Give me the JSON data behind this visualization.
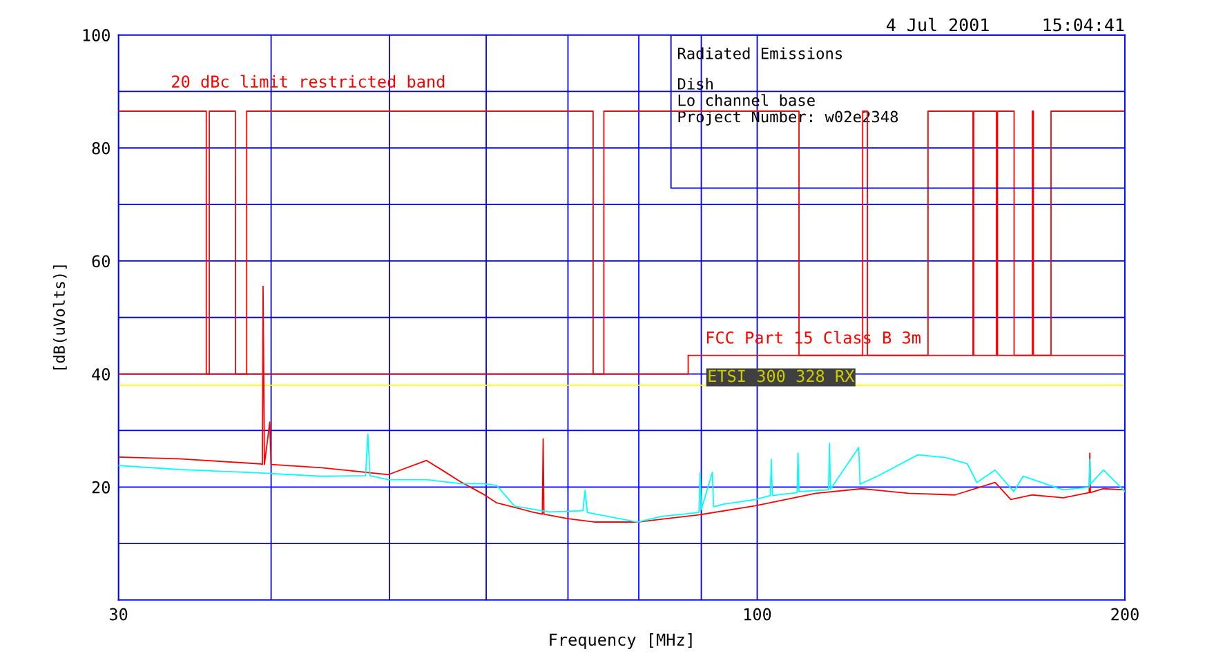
{
  "chart_data": {
    "type": "line",
    "title": "4 Jul 2001     15:04:41",
    "xlabel": "Frequency [MHz]",
    "ylabel": "[dB(uVolts)]",
    "log": "x",
    "xlim": [
      30,
      200
    ],
    "ylim": [
      0,
      100
    ],
    "xticks": [
      30,
      {
        "value": 40,
        "label": null
      },
      {
        "value": 50,
        "label": null
      },
      {
        "value": 60,
        "label": null
      },
      {
        "value": 70,
        "label": null
      },
      {
        "value": 80,
        "label": null
      },
      {
        "value": 90,
        "label": null
      },
      100,
      200
    ],
    "yticks": [
      {
        "value": 10,
        "label": null
      },
      20,
      {
        "value": 30,
        "label": null
      },
      40,
      {
        "value": 50,
        "label": null
      },
      60,
      {
        "value": 70,
        "label": null
      },
      80,
      {
        "value": 90,
        "label": null
      },
      100
    ],
    "grid": true,
    "legend": false,
    "marker": "none",
    "line_style": "solid",
    "series": [
      {
        "name": "FCC Part 15 Class B 3m",
        "color": "#ff0000",
        "x": [
          30,
          87.8,
          87.8,
          200
        ],
        "values": [
          40,
          40,
          43.3,
          43.3
        ]
      },
      {
        "name": "20 dBc limit restricted band",
        "color": "#ff0000",
        "x": [
          30,
          35.4,
          35.4,
          35.6,
          35.6,
          37.4,
          37.4,
          38.2,
          38.2,
          73.4,
          73.4,
          74.9,
          74.9,
          108.2,
          108.2,
          122.0,
          122.0,
          123.1,
          123.1,
          138.0,
          138.0,
          150.2,
          150.2,
          150.4,
          150.4,
          157.0,
          157.0,
          157.3,
          157.3,
          162.3,
          162.3,
          168.0,
          168.0,
          168.3,
          168.3,
          174.0,
          174.0,
          200
        ],
        "values": [
          86.5,
          86.5,
          40,
          40,
          86.5,
          86.5,
          40,
          40,
          86.5,
          86.5,
          40,
          40,
          86.5,
          86.5,
          43.3,
          43.3,
          86.5,
          86.5,
          43.3,
          43.3,
          86.5,
          86.5,
          43.3,
          43.3,
          86.5,
          86.5,
          43.3,
          43.3,
          86.5,
          86.5,
          43.3,
          43.3,
          86.5,
          86.5,
          43.3,
          43.3,
          86.5,
          86.5
        ]
      },
      {
        "color": "#ff0000",
        "x": [
          30.0,
          33.6,
          39.2,
          39.35,
          39.4,
          39.5,
          39.9,
          40.0,
          44.0,
          49.9,
          53.6,
          55.4,
          57.2,
          59.6,
          61.2,
          65.4,
          66.7,
          66.8,
          66.9,
          70.0,
          73.7,
          79.8,
          83.5,
          89.8,
          99.7,
          111.7,
          121.8,
          133.0,
          145.2,
          156.6,
          161.3,
          168.0,
          178.1,
          187.0,
          187.2,
          187.4,
          192.1,
          200
        ],
        "values": [
          25.3,
          25.0,
          24.1,
          24.0,
          55.5,
          24.0,
          31.5,
          24.0,
          23.4,
          22.2,
          24.7,
          22.8,
          20.9,
          18.8,
          17.2,
          15.6,
          15.2,
          28.5,
          15.2,
          14.4,
          13.8,
          13.8,
          14.3,
          15.1,
          16.7,
          18.9,
          19.7,
          18.9,
          18.6,
          20.8,
          17.8,
          18.6,
          18.1,
          19.0,
          26.0,
          19.0,
          19.7,
          19.5
        ]
      },
      {
        "color": "#00ffff",
        "x": [
          30.0,
          33.6,
          39.2,
          44.0,
          47.8,
          48.0,
          48.2,
          49.9,
          53.6,
          57.2,
          59.6,
          61.2,
          63.3,
          67.6,
          72.0,
          72.3,
          72.6,
          79.8,
          83.5,
          89.6,
          89.8,
          90.0,
          91.9,
          92.1,
          94.0,
          99.7,
          102.5,
          102.7,
          102.9,
          107.8,
          108.0,
          108.2,
          114.4,
          114.6,
          114.8,
          121.1,
          121.4,
          125.4,
          135.4,
          142.7,
          148.6,
          151.3,
          156.6,
          162.2,
          165.1,
          178.1,
          187.0,
          187.2,
          187.4,
          192.1,
          200
        ],
        "values": [
          23.8,
          23.1,
          22.5,
          21.9,
          22.0,
          29.4,
          22.0,
          21.3,
          21.3,
          20.6,
          20.6,
          20.3,
          16.6,
          15.6,
          15.8,
          19.4,
          15.5,
          13.8,
          14.8,
          15.5,
          22.5,
          16.0,
          22.6,
          16.5,
          17.0,
          17.8,
          18.5,
          24.9,
          18.5,
          19.0,
          26.0,
          19.2,
          19.5,
          27.7,
          19.6,
          27.0,
          20.5,
          21.9,
          25.7,
          25.2,
          24.1,
          20.8,
          23.0,
          19.2,
          21.9,
          19.5,
          20.0,
          24.9,
          20.5,
          23.0,
          19.2
        ]
      }
    ],
    "ref_lines": [
      {
        "axis": "y",
        "value": 38,
        "label": "ETSI 300 328 RX",
        "color": "#ffff00"
      }
    ],
    "annotations": [
      "Radiated Emissions",
      "Dish",
      "Lo channel base",
      "Project Number: w02e2348"
    ]
  }
}
